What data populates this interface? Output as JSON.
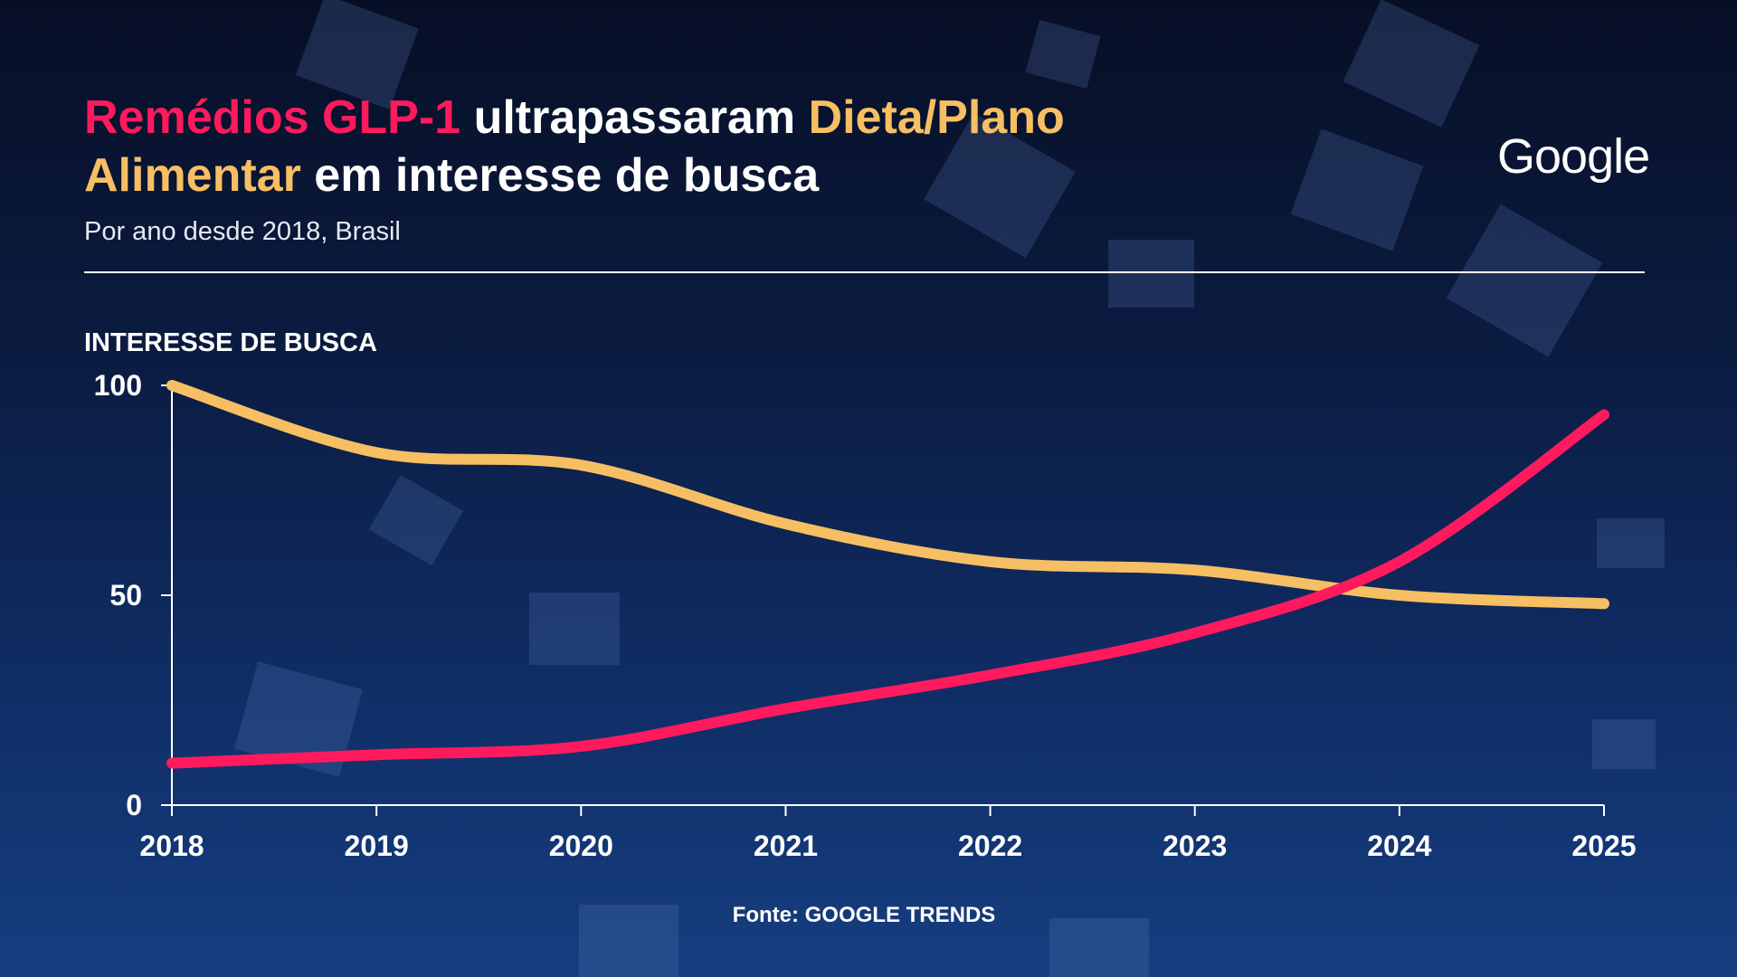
{
  "chart_data": {
    "type": "line",
    "title_parts": [
      "ultrapassaram",
      "em interesse de busca"
    ],
    "subtitle": "Por ano desde 2018, Brasil",
    "logo": "Google",
    "y_label": "INTERESSE DE BUSCA",
    "source": "Fonte: GOOGLE TRENDS",
    "x": [
      2018,
      2019,
      2020,
      2021,
      2022,
      2023,
      2024,
      2025
    ],
    "series": [
      {
        "name": "Remédios GLP-1",
        "color": "#ff1a5e",
        "values": [
          10,
          12,
          14,
          23,
          31,
          41,
          58,
          93
        ]
      },
      {
        "name": "Dieta/Plano Alimentar",
        "color": "#f7bf63",
        "values": [
          100,
          84,
          81,
          67,
          58,
          56,
          50,
          48
        ]
      }
    ],
    "xlim": [
      2018,
      2025
    ],
    "xticks": [
      2018,
      2019,
      2020,
      2021,
      2022,
      2023,
      2024,
      2025
    ],
    "ylim": [
      0,
      100
    ],
    "yticks": [
      0,
      50,
      100
    ]
  }
}
